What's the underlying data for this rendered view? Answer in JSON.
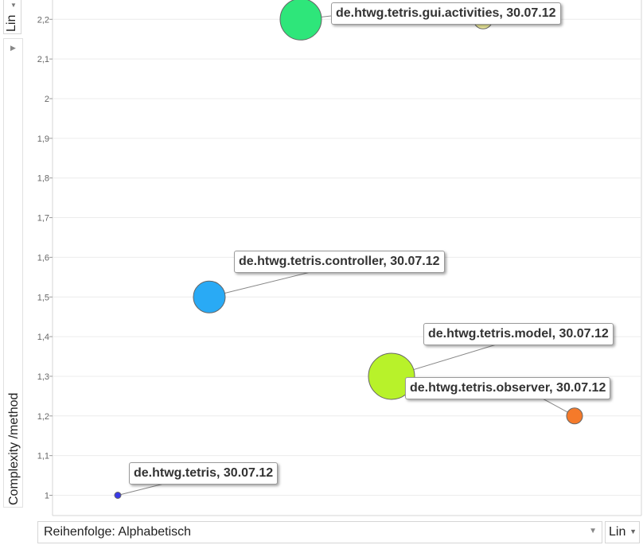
{
  "controls": {
    "vertical_scale": "Lin",
    "horizontal_scale": "Lin",
    "order_select": "Reihenfolge: Alphabetisch",
    "collapse_arrow": "▶",
    "dropdown_arrow": "▼"
  },
  "chart_data": {
    "type": "scatter",
    "ylabel": "Complexity /method",
    "ylim": [
      0.95,
      2.25
    ],
    "yticks": [
      "1",
      "1,1",
      "1,2",
      "1,3",
      "1,4",
      "1,5",
      "1,6",
      "1,7",
      "1,8",
      "1,9",
      "2",
      "2,1",
      "2,2"
    ],
    "grid": true,
    "points": [
      {
        "label": "de.htwg.tetris.gui.activities, 30.07.12",
        "y": 2.2,
        "color": "#2ee67a"
      },
      {
        "label": "de.htwg.tetris.controller, 30.07.12",
        "y": 1.5,
        "color": "#29aaf5"
      },
      {
        "label": "de.htwg.tetris.model, 30.07.12",
        "y": 1.3,
        "color": "#b8f22a"
      },
      {
        "label": "de.htwg.tetris.observer, 30.07.12",
        "y": 1.2,
        "color": "#f57a2a"
      },
      {
        "label": "de.htwg.tetris, 30.07.12",
        "y": 1.0,
        "color": "#3a3ae8"
      },
      {
        "label": "",
        "y": 2.2,
        "color": "#f2f0a0"
      }
    ]
  }
}
